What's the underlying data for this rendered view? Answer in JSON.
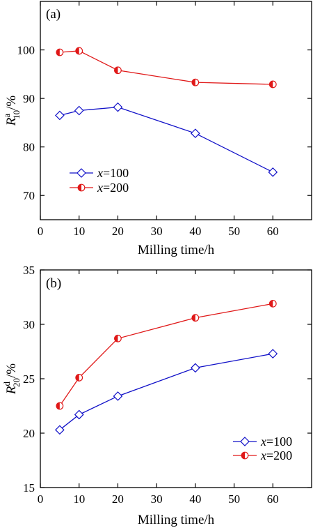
{
  "chart_data": [
    {
      "type": "line",
      "panel_label": "(a)",
      "xlabel": "Milling time/h",
      "ylabel": {
        "base": "R",
        "sup": "a",
        "sub": "10",
        "suffix": "/%"
      },
      "xlim": [
        0,
        70
      ],
      "ylim": [
        65,
        110
      ],
      "xticks": [
        0,
        10,
        20,
        30,
        40,
        50,
        60
      ],
      "yticks": [
        70,
        80,
        90,
        100
      ],
      "x": [
        5,
        10,
        20,
        40,
        60
      ],
      "legend_placement": "bottom-left",
      "series": [
        {
          "name": "x=100",
          "name_var": "x",
          "name_val": "=100",
          "marker": "diamond",
          "color": "#1010c8",
          "values": [
            86.5,
            87.5,
            88.2,
            82.8,
            74.8
          ]
        },
        {
          "name": "x=200",
          "name_var": "x",
          "name_val": "=200",
          "marker": "half-circle",
          "color": "#e01818",
          "values": [
            99.5,
            99.8,
            95.8,
            93.3,
            92.9
          ]
        }
      ]
    },
    {
      "type": "line",
      "panel_label": "(b)",
      "xlabel": "Milling time/h",
      "ylabel": {
        "base": "R",
        "sup": "d",
        "sub": "20",
        "suffix": "/%"
      },
      "xlim": [
        0,
        70
      ],
      "ylim": [
        15,
        35
      ],
      "xticks": [
        0,
        10,
        20,
        30,
        40,
        50,
        60
      ],
      "yticks": [
        15,
        20,
        25,
        30,
        35
      ],
      "x": [
        5,
        10,
        20,
        40,
        60
      ],
      "legend_placement": "bottom-right",
      "series": [
        {
          "name": "x=100",
          "name_var": "x",
          "name_val": "=100",
          "marker": "diamond",
          "color": "#1010c8",
          "values": [
            20.3,
            21.7,
            23.4,
            26.0,
            27.3
          ]
        },
        {
          "name": "x=200",
          "name_var": "x",
          "name_val": "=200",
          "marker": "half-circle",
          "color": "#e01818",
          "values": [
            22.5,
            25.1,
            28.7,
            30.6,
            31.9
          ]
        }
      ]
    }
  ]
}
